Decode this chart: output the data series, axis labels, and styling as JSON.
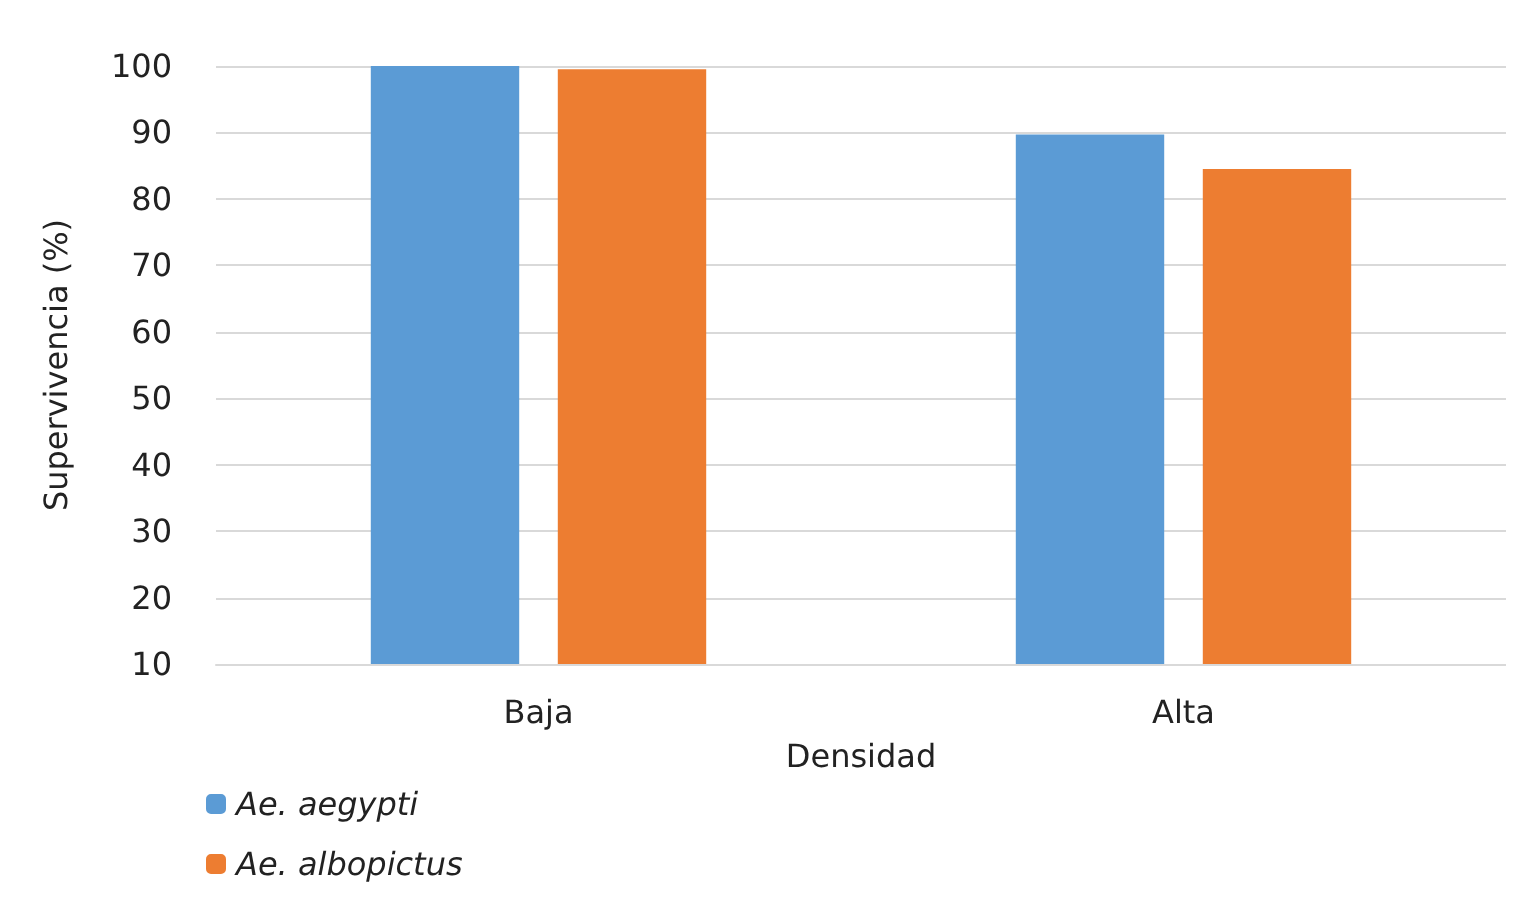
{
  "chart_data": {
    "type": "bar",
    "xlabel": "Densidad",
    "ylabel": "Supervivencia (%)",
    "categories": [
      "Baja",
      "Alta"
    ],
    "series": [
      {
        "name": "Ae. aegypti",
        "color": "#5b9bd5",
        "values": [
          100,
          89.7
        ]
      },
      {
        "name": "Ae. albopictus",
        "color": "#ed7d31",
        "values": [
          99.5,
          84.5
        ]
      }
    ],
    "ylim": [
      10,
      100
    ],
    "yticks": [
      10,
      20,
      30,
      40,
      50,
      60,
      70,
      80,
      90,
      100
    ],
    "grid": "y",
    "legend": "bottom left"
  }
}
